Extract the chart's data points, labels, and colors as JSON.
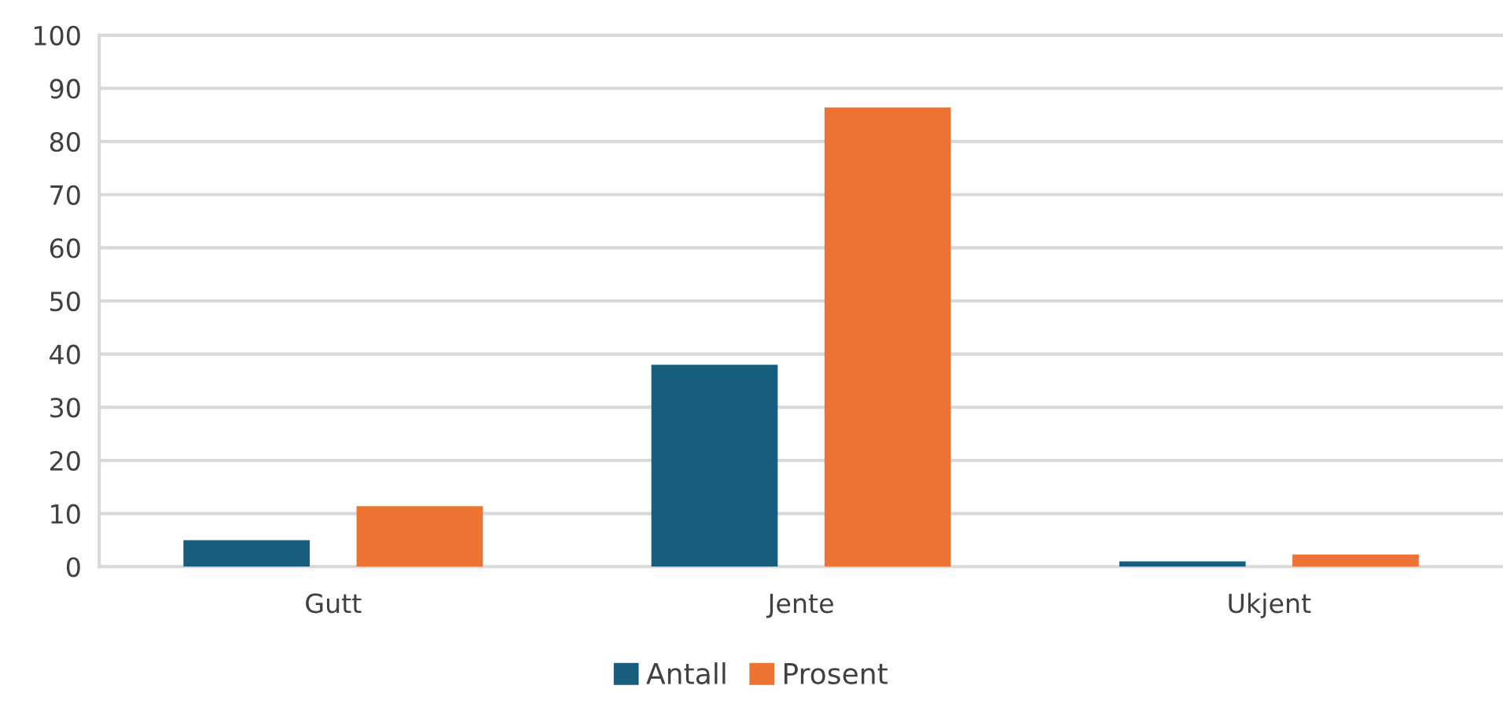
{
  "chart_data": {
    "type": "bar",
    "categories": [
      "Gutt",
      "Jente",
      "Ukjent"
    ],
    "series": [
      {
        "name": "Antall",
        "color": "#175e7e",
        "values": [
          5,
          38,
          1
        ]
      },
      {
        "name": "Prosent",
        "color": "#ed7333",
        "values": [
          11.4,
          86.4,
          2.3
        ]
      }
    ],
    "ylim": [
      0,
      100
    ],
    "yticks": [
      0,
      10,
      20,
      30,
      40,
      50,
      60,
      70,
      80,
      90,
      100
    ],
    "grid": "y",
    "legend": "bottom"
  }
}
